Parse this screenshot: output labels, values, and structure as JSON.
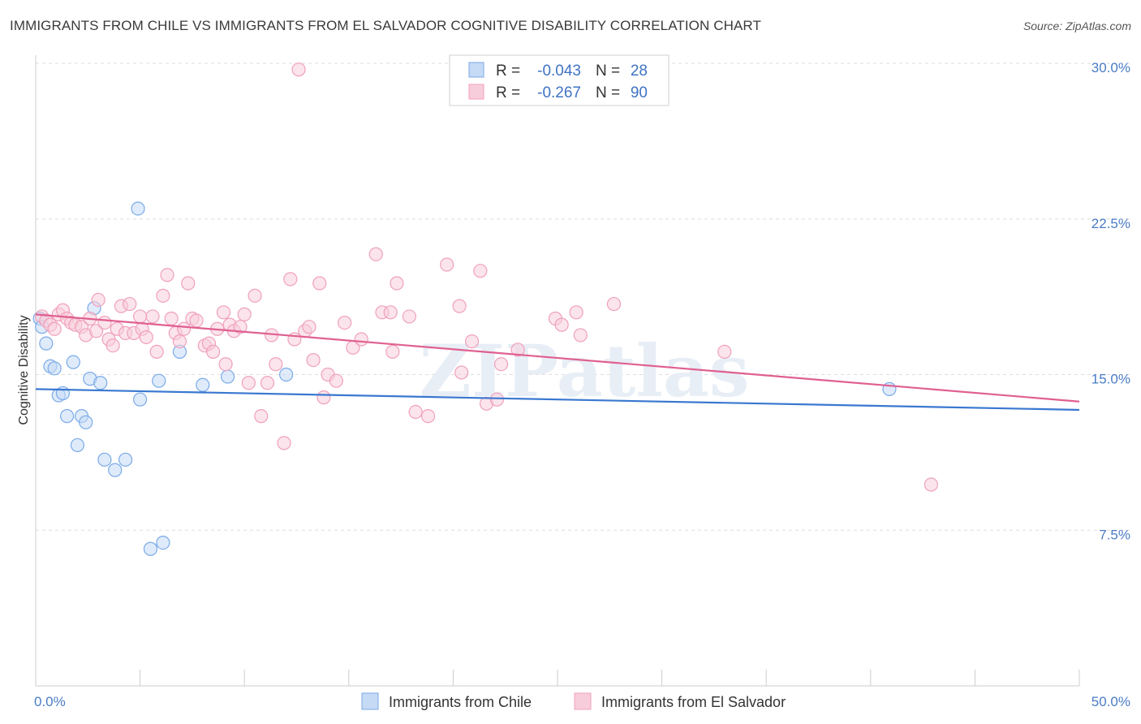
{
  "header": {
    "title": "IMMIGRANTS FROM CHILE VS IMMIGRANTS FROM EL SALVADOR COGNITIVE DISABILITY CORRELATION CHART",
    "source": "Source: ZipAtlas.com"
  },
  "watermark": "ZIPatlas",
  "chart_data": {
    "type": "scatter",
    "title": "IMMIGRANTS FROM CHILE VS IMMIGRANTS FROM EL SALVADOR COGNITIVE DISABILITY CORRELATION CHART",
    "xlabel": "",
    "ylabel": "Cognitive Disability",
    "xlim": [
      0,
      50
    ],
    "ylim": [
      0,
      30
    ],
    "x_tick_labels": [
      "0.0%",
      "50.0%"
    ],
    "y_ticks": [
      7.5,
      15.0,
      22.5,
      30.0
    ],
    "y_tick_labels": [
      "7.5%",
      "15.0%",
      "22.5%",
      "30.0%"
    ],
    "grid": "horizontal dashed",
    "legend_position": "top-center",
    "legend": [
      {
        "r_label": "R =",
        "r_value": "-0.043",
        "n_label": "N =",
        "n_value": "28"
      },
      {
        "r_label": "R =",
        "r_value": "-0.267",
        "n_label": "N =",
        "n_value": "90"
      }
    ],
    "series": [
      {
        "name": "Immigrants from Chile",
        "color": "#7aaae8",
        "fill": "#c5daf5",
        "line_color": "#3a78d0",
        "trend": {
          "x": [
            0,
            50
          ],
          "y": [
            14.3,
            13.3
          ]
        },
        "points": [
          [
            0.2,
            17.7
          ],
          [
            0.3,
            17.3
          ],
          [
            0.5,
            16.5
          ],
          [
            0.7,
            15.4
          ],
          [
            0.9,
            15.3
          ],
          [
            1.1,
            14.0
          ],
          [
            1.3,
            14.1
          ],
          [
            1.5,
            13.0
          ],
          [
            1.8,
            15.6
          ],
          [
            2.0,
            11.6
          ],
          [
            2.2,
            13.0
          ],
          [
            2.4,
            12.7
          ],
          [
            2.6,
            14.8
          ],
          [
            2.8,
            18.2
          ],
          [
            3.1,
            14.6
          ],
          [
            3.3,
            10.9
          ],
          [
            3.8,
            10.4
          ],
          [
            4.3,
            10.9
          ],
          [
            4.9,
            23.0
          ],
          [
            5.0,
            13.8
          ],
          [
            5.5,
            6.6
          ],
          [
            5.9,
            14.7
          ],
          [
            6.1,
            6.9
          ],
          [
            6.9,
            16.1
          ],
          [
            8.0,
            14.5
          ],
          [
            9.2,
            14.9
          ],
          [
            12.0,
            15.0
          ],
          [
            40.9,
            14.3
          ]
        ]
      },
      {
        "name": "Immigrants from El Salvador",
        "color": "#f0a0bc",
        "fill": "#f8cddb",
        "line_color": "#e06090",
        "trend": {
          "x": [
            0,
            50
          ],
          "y": [
            17.9,
            13.7
          ]
        },
        "points": [
          [
            0.3,
            17.8
          ],
          [
            0.5,
            17.6
          ],
          [
            0.7,
            17.4
          ],
          [
            0.9,
            17.2
          ],
          [
            1.1,
            17.9
          ],
          [
            1.3,
            18.1
          ],
          [
            1.5,
            17.7
          ],
          [
            1.7,
            17.5
          ],
          [
            1.9,
            17.4
          ],
          [
            2.2,
            17.3
          ],
          [
            2.4,
            16.9
          ],
          [
            2.6,
            17.7
          ],
          [
            2.9,
            17.1
          ],
          [
            3.0,
            18.6
          ],
          [
            3.3,
            17.5
          ],
          [
            3.5,
            16.7
          ],
          [
            3.7,
            16.4
          ],
          [
            3.9,
            17.2
          ],
          [
            4.1,
            18.3
          ],
          [
            4.3,
            17.0
          ],
          [
            4.5,
            18.4
          ],
          [
            4.7,
            17.0
          ],
          [
            5.0,
            17.8
          ],
          [
            5.1,
            17.2
          ],
          [
            5.3,
            16.8
          ],
          [
            5.6,
            17.8
          ],
          [
            5.8,
            16.1
          ],
          [
            6.1,
            18.8
          ],
          [
            6.3,
            19.8
          ],
          [
            6.5,
            17.7
          ],
          [
            6.7,
            17.0
          ],
          [
            6.9,
            16.6
          ],
          [
            7.1,
            17.2
          ],
          [
            7.3,
            19.4
          ],
          [
            7.5,
            17.7
          ],
          [
            7.7,
            17.6
          ],
          [
            8.1,
            16.4
          ],
          [
            8.3,
            16.5
          ],
          [
            8.5,
            16.1
          ],
          [
            8.7,
            17.2
          ],
          [
            9.0,
            18.0
          ],
          [
            9.1,
            15.5
          ],
          [
            9.3,
            17.4
          ],
          [
            9.5,
            17.1
          ],
          [
            9.8,
            17.3
          ],
          [
            10.0,
            17.9
          ],
          [
            10.2,
            14.6
          ],
          [
            10.5,
            18.8
          ],
          [
            10.8,
            13.0
          ],
          [
            11.1,
            14.6
          ],
          [
            11.3,
            16.9
          ],
          [
            11.5,
            15.5
          ],
          [
            11.9,
            11.7
          ],
          [
            12.2,
            19.6
          ],
          [
            12.4,
            16.7
          ],
          [
            12.9,
            17.1
          ],
          [
            13.1,
            17.3
          ],
          [
            13.3,
            15.7
          ],
          [
            13.6,
            19.4
          ],
          [
            13.8,
            13.9
          ],
          [
            14.0,
            15.0
          ],
          [
            14.4,
            14.7
          ],
          [
            14.8,
            17.5
          ],
          [
            15.2,
            16.3
          ],
          [
            15.6,
            16.7
          ],
          [
            16.3,
            20.8
          ],
          [
            16.6,
            18.0
          ],
          [
            17.0,
            18.0
          ],
          [
            17.1,
            16.1
          ],
          [
            17.3,
            19.4
          ],
          [
            17.9,
            17.8
          ],
          [
            18.2,
            13.2
          ],
          [
            18.8,
            13.0
          ],
          [
            19.7,
            20.3
          ],
          [
            20.3,
            18.3
          ],
          [
            20.4,
            15.1
          ],
          [
            20.9,
            16.6
          ],
          [
            21.3,
            20.0
          ],
          [
            21.6,
            13.6
          ],
          [
            22.1,
            13.8
          ],
          [
            22.3,
            15.5
          ],
          [
            23.1,
            16.2
          ],
          [
            24.9,
            17.7
          ],
          [
            25.2,
            17.4
          ],
          [
            25.9,
            18.0
          ],
          [
            26.1,
            16.9
          ],
          [
            27.7,
            18.4
          ],
          [
            33.0,
            16.1
          ],
          [
            42.9,
            9.7
          ],
          [
            12.6,
            29.7
          ]
        ]
      }
    ]
  }
}
